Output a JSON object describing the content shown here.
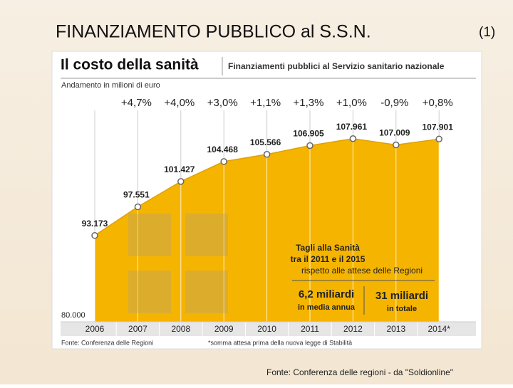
{
  "slide_title": "FINANZIAMENTO PUBBLICO al S.S.N.",
  "slide_number": "(1)",
  "slide_source": "Fonte: Conferenza delle regioni - da \"Soldionline\"",
  "chart_data": {
    "type": "area",
    "title": "Il costo della sanità",
    "subtitle": "Finanziamenti pubblici al Servizio sanitario nazionale",
    "y_label": "Andamento in milioni di euro",
    "categories": [
      "2006",
      "2007",
      "2008",
      "2009",
      "2010",
      "2011",
      "2012",
      "2013",
      "2014*"
    ],
    "values": [
      93173,
      97551,
      101427,
      104468,
      105566,
      106905,
      107961,
      107009,
      107901
    ],
    "value_labels": [
      "93.173",
      "97.551",
      "101.427",
      "104.468",
      "105.566",
      "106.905",
      "107.961",
      "107.009",
      "107.901"
    ],
    "growth_labels": [
      "+4,7%",
      "+4,0%",
      "+3,0%",
      "+1,1%",
      "+1,3%",
      "+1,0%",
      "-0,9%",
      "+0,8%"
    ],
    "color": "#f5b400",
    "ylim": [
      80000,
      115000
    ],
    "yticks": [
      {
        "value": 80000,
        "label": "80.000"
      }
    ],
    "annotations": {
      "heading": [
        "Tagli alla Sanità",
        "tra il 2011 e il 2015"
      ],
      "subheading": "rispetto alle attese delle Regioni",
      "left_amount": "6,2 miliardi",
      "left_note": "in media annua",
      "right_amount": "31 miliardi",
      "right_note": "in totale"
    },
    "source": "Fonte: Conferenza delle Regioni",
    "footnote": "*somma attesa prima della nuova legge di Stabilità"
  }
}
